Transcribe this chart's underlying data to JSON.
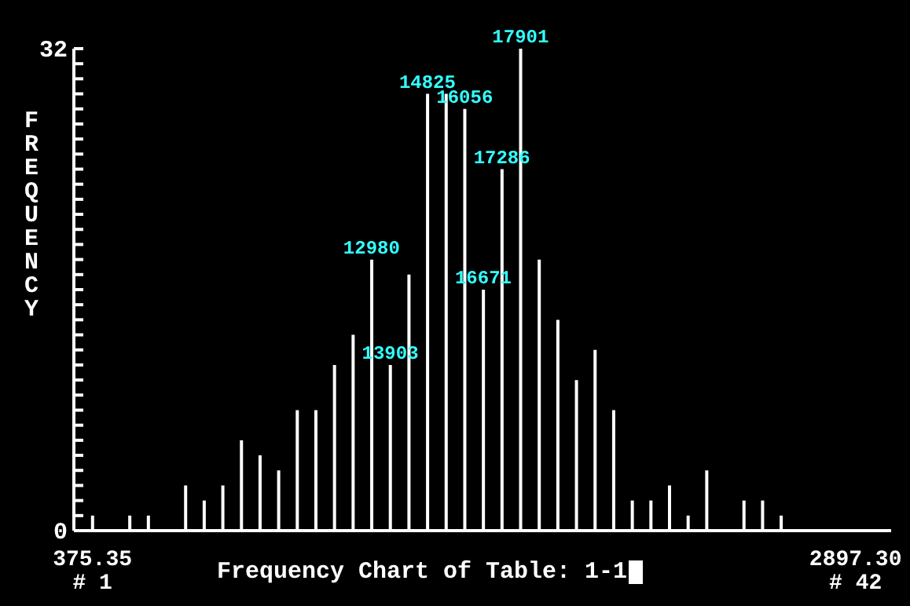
{
  "chart_data": {
    "type": "bar",
    "title": "Frequency Chart of Table: 1-1",
    "ylabel": "FREQUENCY",
    "x": [
      375.35,
      436.86,
      498.37,
      559.88,
      621.39,
      682.91,
      744.42,
      805.93,
      867.44,
      928.95,
      990.46,
      1051.97,
      1113.48,
      1174.99,
      1236.5,
      1298.02,
      1359.53,
      1421.04,
      1482.55,
      1544.06,
      1605.57,
      1667.08,
      1728.59,
      1790.1,
      1851.61,
      1913.13,
      1974.64,
      2036.15,
      2097.66,
      2159.17,
      2220.68,
      2282.19,
      2343.7,
      2405.21,
      2466.72,
      2528.24,
      2589.75,
      2651.26,
      2712.77,
      2774.28,
      2835.79,
      2897.3
    ],
    "values": [
      1,
      0,
      1,
      1,
      0,
      3,
      2,
      3,
      6,
      5,
      4,
      8,
      8,
      11,
      13,
      18,
      11,
      17,
      29,
      29,
      28,
      16,
      24,
      32,
      18,
      14,
      10,
      12,
      8,
      2,
      2,
      3,
      1,
      4,
      0,
      2,
      2,
      1,
      0,
      0,
      0,
      0
    ],
    "color": "#ffffff",
    "xlim": [
      314,
      3015
    ],
    "xticks": [
      375.35,
      {
        "value": 2897.3,
        "label": "2897.30"
      }
    ],
    "ylim": [
      0,
      32
    ],
    "yticks": [
      0,
      {
        "value": 1,
        "label": null
      },
      {
        "value": 2,
        "label": null
      },
      {
        "value": 3,
        "label": null
      },
      {
        "value": 4,
        "label": null
      },
      {
        "value": 5,
        "label": null
      },
      {
        "value": 6,
        "label": null
      },
      {
        "value": 7,
        "label": null
      },
      {
        "value": 8,
        "label": null
      },
      {
        "value": 9,
        "label": null
      },
      {
        "value": 10,
        "label": null
      },
      {
        "value": 11,
        "label": null
      },
      {
        "value": 12,
        "label": null
      },
      {
        "value": 13,
        "label": null
      },
      {
        "value": 14,
        "label": null
      },
      {
        "value": 15,
        "label": null
      },
      {
        "value": 16,
        "label": null
      },
      {
        "value": 17,
        "label": null
      },
      {
        "value": 18,
        "label": null
      },
      {
        "value": 19,
        "label": null
      },
      {
        "value": 20,
        "label": null
      },
      {
        "value": 21,
        "label": null
      },
      {
        "value": 22,
        "label": null
      },
      {
        "value": 23,
        "label": null
      },
      {
        "value": 24,
        "label": null
      },
      {
        "value": 25,
        "label": null
      },
      {
        "value": 26,
        "label": null
      },
      {
        "value": 27,
        "label": null
      },
      {
        "value": 28,
        "label": null
      },
      {
        "value": 29,
        "label": null
      },
      {
        "value": 30,
        "label": null
      },
      {
        "value": 31,
        "label": null
      },
      32
    ],
    "annotations": [
      "# 1",
      "# 42",
      {
        "text": "12980",
        "x": 1298.02,
        "y": 18
      },
      {
        "text": "13903",
        "x": 1359.53,
        "y": 11
      },
      {
        "text": "14825",
        "x": 1482.55,
        "y": 29
      },
      {
        "text": "16056",
        "x": 1605.57,
        "y": 28
      },
      {
        "text": "16671",
        "x": 1667.08,
        "y": 16
      },
      {
        "text": "17286",
        "x": 1728.59,
        "y": 24
      },
      {
        "text": "17901",
        "x": 1790.1,
        "y": 32
      }
    ],
    "grid": false,
    "legend": false
  }
}
